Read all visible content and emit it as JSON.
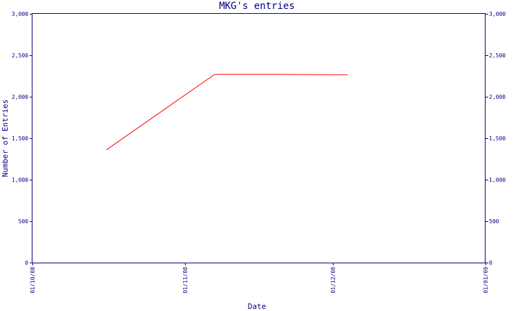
{
  "chart_data": {
    "type": "line",
    "title": "MKG's entries",
    "xlabel": "Date",
    "ylabel": "Number of Entries",
    "x_ticks": [
      "01/10/08",
      "01/11/08",
      "01/12/08",
      "01/01/09"
    ],
    "y_ticks": [
      "0",
      "500",
      "1,000",
      "1,500",
      "2,000",
      "2,500",
      "3,000"
    ],
    "ylim": [
      0,
      3000
    ],
    "xlim": [
      "2008-10-01",
      "2009-01-01"
    ],
    "grid": false,
    "legend": "none",
    "series": [
      {
        "color": "#ff0000",
        "points": [
          {
            "x": "2008-10-16",
            "y": 1360
          },
          {
            "x": "2008-11-07",
            "y": 2270
          },
          {
            "x": "2008-11-21",
            "y": 2270
          },
          {
            "x": "2008-12-04",
            "y": 2265
          }
        ]
      }
    ]
  }
}
